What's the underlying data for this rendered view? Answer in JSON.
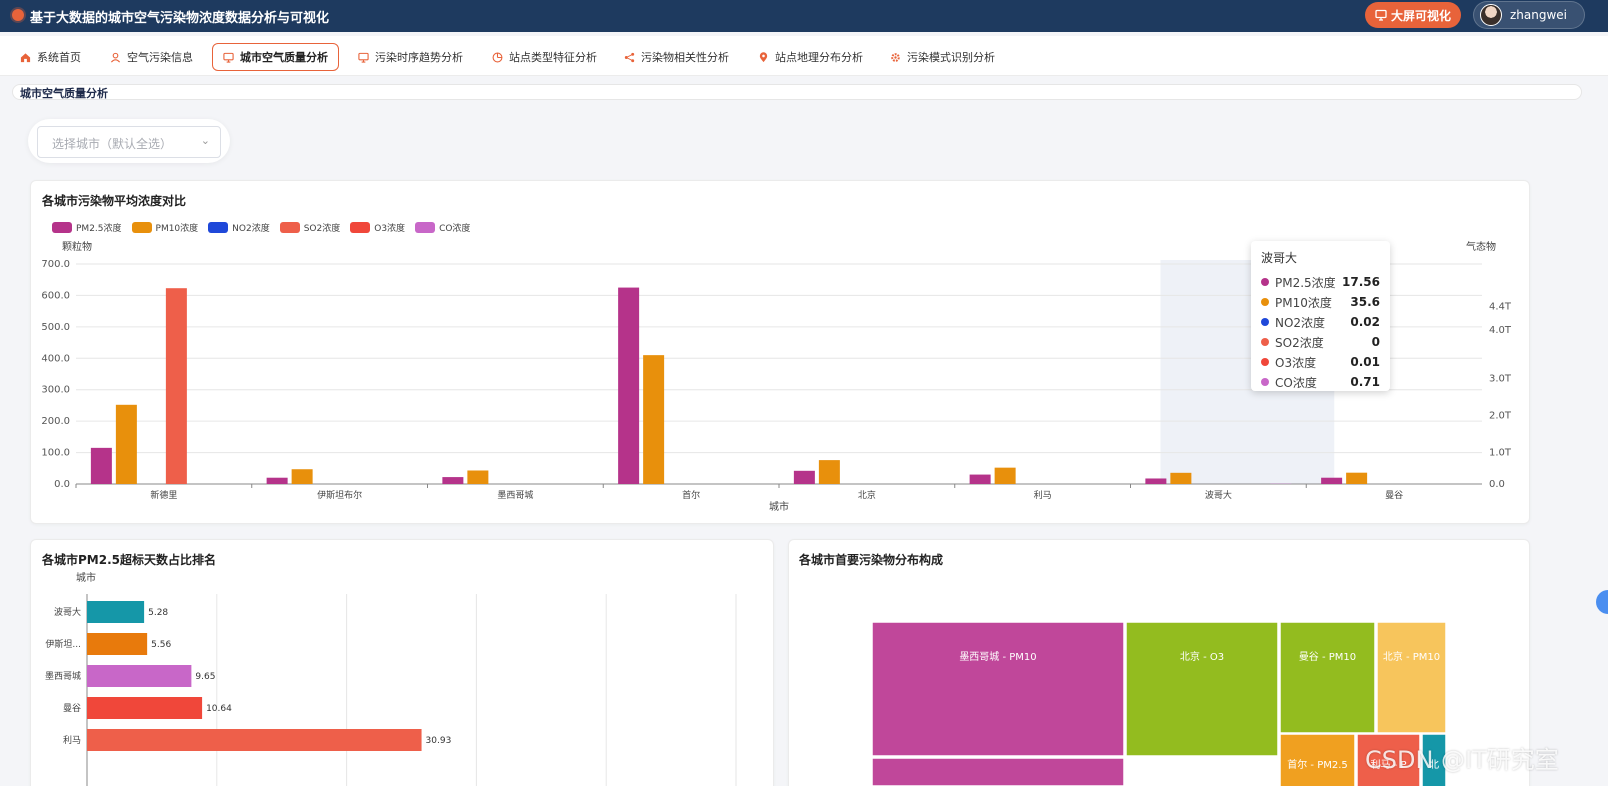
{
  "header": {
    "title": "基于大数据的城市空气污染物浓度数据分析与可视化",
    "bigscreen_label": "大屏可视化",
    "username": "zhangwei"
  },
  "nav": {
    "items": [
      {
        "label": "系统首页",
        "icon": "home-icon"
      },
      {
        "label": "空气污染信息",
        "icon": "user-icon"
      },
      {
        "label": "城市空气质量分析",
        "icon": "monitor-icon"
      },
      {
        "label": "污染时序趋势分析",
        "icon": "monitor-icon"
      },
      {
        "label": "站点类型特征分析",
        "icon": "pie-icon"
      },
      {
        "label": "污染物相关性分析",
        "icon": "share-icon"
      },
      {
        "label": "站点地理分布分析",
        "icon": "location-icon"
      },
      {
        "label": "污染模式识别分析",
        "icon": "gear-icon"
      }
    ],
    "active": "城市空气质量分析"
  },
  "page": {
    "section_title": "城市空气质量分析",
    "city_select_placeholder": "选择城市（默认全选）"
  },
  "colors": {
    "pm25": "#b5338a",
    "pm10": "#e8900c",
    "no2": "#1f48d9",
    "so2": "#ee5f4a",
    "o3": "#f0473a",
    "co": "#c867c8",
    "accent": "#e8633a"
  },
  "chart1": {
    "title": "各城市污染物平均浓度对比"
  },
  "chart2": {
    "title": "各城市PM2.5超标天数占比排名"
  },
  "chart3": {
    "title": "各城市首要污染物分布构成"
  },
  "tooltip": {
    "city": "波哥大",
    "rows": [
      {
        "name": "PM2.5浓度",
        "value": "17.56"
      },
      {
        "name": "PM10浓度",
        "value": "35.6"
      },
      {
        "name": "NO2浓度",
        "value": "0.02"
      },
      {
        "name": "SO2浓度",
        "value": "0"
      },
      {
        "name": "O3浓度",
        "value": "0.01"
      },
      {
        "name": "CO浓度",
        "value": "0.71"
      }
    ]
  },
  "watermark": "CSDN @IT研究室",
  "chart_data": [
    {
      "type": "bar",
      "title": "各城市污染物平均浓度对比",
      "xlabel": "城市",
      "ylabel": "颗粒物",
      "y2label": "气态物",
      "ylim": [
        0,
        700
      ],
      "y_ticks": [
        "0.0",
        "100.0",
        "200.0",
        "300.0",
        "400.0",
        "500.0",
        "600.0",
        "700.0"
      ],
      "y2_ticks": [
        "0.0",
        "1.0T",
        "2.0T",
        "3.0T",
        "4.0T",
        "4.4T"
      ],
      "categories": [
        "新德里",
        "伊斯坦布尔",
        "墨西哥城",
        "首尔",
        "北京",
        "利马",
        "波哥大",
        "曼谷"
      ],
      "highlight": "波哥大",
      "legend_position": "top-left",
      "series": [
        {
          "name": "PM2.5浓度",
          "values": [
            115,
            20,
            22,
            625,
            42,
            30,
            17.56,
            20
          ]
        },
        {
          "name": "PM10浓度",
          "values": [
            252,
            47,
            43,
            410,
            76,
            52,
            35.6,
            36
          ]
        },
        {
          "name": "NO2浓度",
          "values": [
            0,
            0,
            0,
            0,
            0,
            0,
            0.02,
            0
          ]
        },
        {
          "name": "SO2浓度",
          "values": [
            623,
            0,
            0,
            0,
            0,
            0,
            0,
            0
          ]
        },
        {
          "name": "O3浓度",
          "values": [
            0,
            0,
            0,
            0,
            0,
            0,
            0.01,
            0
          ]
        },
        {
          "name": "CO浓度",
          "values": [
            0,
            0,
            0,
            0,
            0,
            0,
            0.71,
            0
          ]
        }
      ]
    },
    {
      "type": "bar",
      "orientation": "horizontal",
      "title": "各城市PM2.5超标天数占比排名",
      "ylabel": "城市",
      "categories": [
        "波哥大",
        "伊斯坦...",
        "墨西哥城",
        "曼谷",
        "利马"
      ],
      "values": [
        5.28,
        5.56,
        9.65,
        10.64,
        30.93
      ],
      "value_labels": [
        "5.28",
        "5.56",
        "9.65",
        "10.64",
        "30.93"
      ],
      "bar_colors": [
        "#1597a8",
        "#e87a0c",
        "#c867c8",
        "#f0473a",
        "#ee5f4a"
      ],
      "xlim": [
        0,
        60
      ]
    },
    {
      "type": "treemap",
      "title": "各城市首要污染物分布构成",
      "items": [
        {
          "label": "墨西哥城 - PM10",
          "color": "#c0479a"
        },
        {
          "label": "北京 - O3",
          "color": "#93bc1f"
        },
        {
          "label": "曼谷 - PM10",
          "color": "#93bc1f"
        },
        {
          "label": "北京 - PM10",
          "color": "#f7c55c"
        },
        {
          "label": "首尔 - PM2.5",
          "color": "#f0a020"
        },
        {
          "label": "利马 - P",
          "color": "#ee5f4a"
        },
        {
          "label": "北",
          "color": "#1597a8"
        }
      ]
    }
  ]
}
